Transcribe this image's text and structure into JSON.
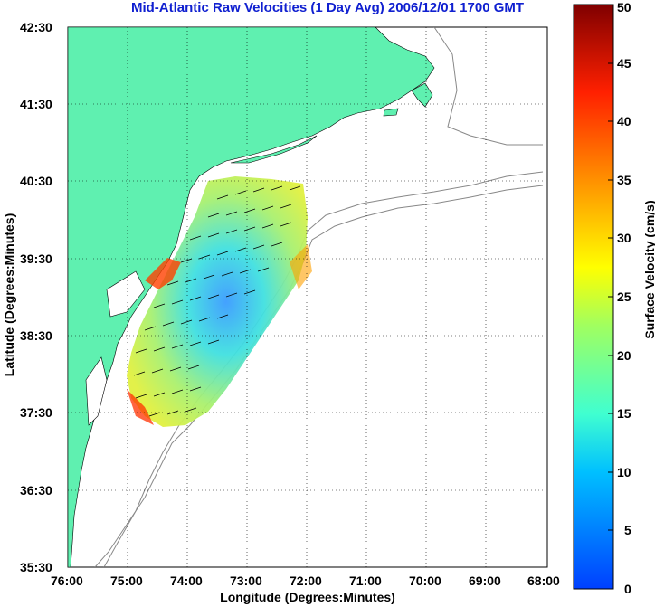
{
  "title": "Mid-Atlantic Raw Velocities (1 Day Avg) 2006/12/01 1700 GMT",
  "xlabel": "Longitude (Degrees:Minutes)",
  "ylabel": "Latitude (Degrees:Minutes)",
  "colorbar": {
    "label": "Surface Velocity (cm/s)",
    "ticks": [
      "0",
      "5",
      "10",
      "15",
      "20",
      "25",
      "30",
      "35",
      "40",
      "45",
      "50"
    ],
    "range": [
      0,
      50
    ]
  },
  "axes": {
    "x_ticks": [
      "76:00",
      "75:00",
      "74:00",
      "73:00",
      "72:00",
      "71:00",
      "70:00",
      "69:00",
      "68:00"
    ],
    "y_ticks": [
      "42:30",
      "41:30",
      "40:30",
      "39:30",
      "38:30",
      "37:30",
      "36:30",
      "35:30"
    ]
  },
  "colors": {
    "land": "#5ff0b0",
    "title": "#1020d0",
    "isobath": "#888888"
  }
}
